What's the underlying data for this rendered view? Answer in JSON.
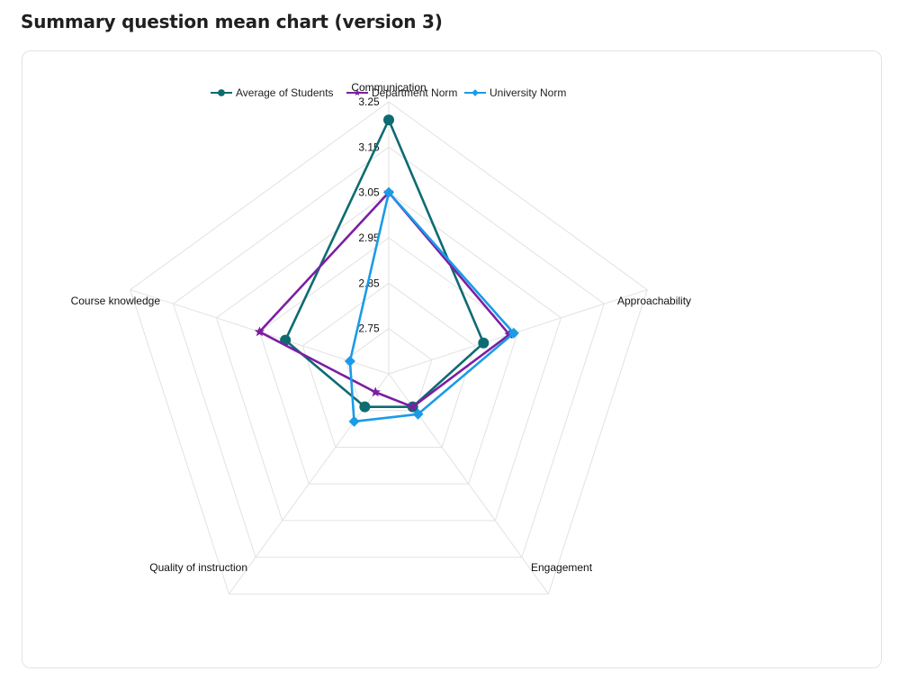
{
  "page": {
    "title": "Summary question mean chart (version 3)"
  },
  "chart_data": {
    "type": "radar",
    "title": "",
    "axes": [
      "Communication",
      "Approachability",
      "Engagement",
      "Quality of instruction",
      "Course knowledge"
    ],
    "ticks": [
      "2.75",
      "2.85",
      "2.95",
      "3.05",
      "3.15",
      "3.25"
    ],
    "range": [
      2.65,
      3.25
    ],
    "grid": true,
    "legend_position": "top",
    "series": [
      {
        "name": "Average of Students",
        "values": [
          3.21,
          2.87,
          2.74,
          2.74,
          2.89
        ],
        "color": "#0e6b72",
        "marker": "circle"
      },
      {
        "name": "Department Norm",
        "values": [
          3.05,
          2.93,
          2.74,
          2.7,
          2.95
        ],
        "color": "#7b1fa2",
        "marker": "star"
      },
      {
        "name": "University Norm",
        "values": [
          3.05,
          2.94,
          2.76,
          2.78,
          2.74
        ],
        "color": "#1a9be8",
        "marker": "diamond"
      }
    ]
  }
}
